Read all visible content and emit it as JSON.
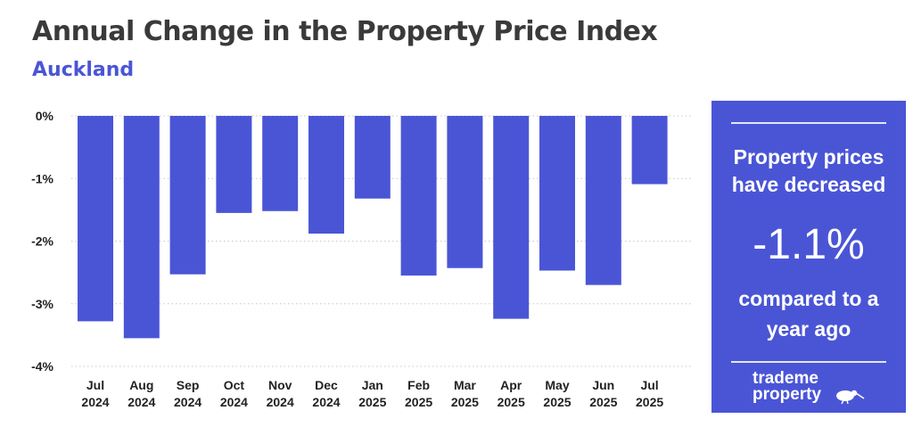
{
  "title": "Annual Change in the Property Price Index",
  "subtitle": "Auckland",
  "chart_data": {
    "type": "bar",
    "title": "Annual Change in the Property Price Index",
    "subtitle": "Auckland",
    "categories": [
      [
        "Jul",
        "2024"
      ],
      [
        "Aug",
        "2024"
      ],
      [
        "Sep",
        "2024"
      ],
      [
        "Oct",
        "2024"
      ],
      [
        "Nov",
        "2024"
      ],
      [
        "Dec",
        "2024"
      ],
      [
        "Jan",
        "2025"
      ],
      [
        "Feb",
        "2025"
      ],
      [
        "Mar",
        "2025"
      ],
      [
        "Apr",
        "2025"
      ],
      [
        "May",
        "2025"
      ],
      [
        "Jun",
        "2025"
      ],
      [
        "Jul",
        "2025"
      ]
    ],
    "values": [
      -3.28,
      -3.55,
      -2.53,
      -1.55,
      -1.52,
      -1.88,
      -1.32,
      -2.55,
      -2.43,
      -3.24,
      -2.47,
      -2.7,
      -1.09
    ],
    "ylim": [
      -4,
      0
    ],
    "yticks": [
      0,
      -1,
      -2,
      -3,
      -4
    ],
    "ytick_labels": [
      "0%",
      "-1%",
      "-2%",
      "-3%",
      "-4%"
    ],
    "xlabel": "",
    "ylabel": "",
    "grid": true,
    "bar_color": "#4a55d6"
  },
  "panel": {
    "headline_line1": "Property prices",
    "headline_line2": "have decreased",
    "value": "-1.1%",
    "footer_line1": "compared to a",
    "footer_line2": "year ago",
    "logo_line1": "trademe",
    "logo_line2": "property",
    "logo_icon": "kiwi-bird-icon",
    "background_color": "#4a55d6"
  }
}
